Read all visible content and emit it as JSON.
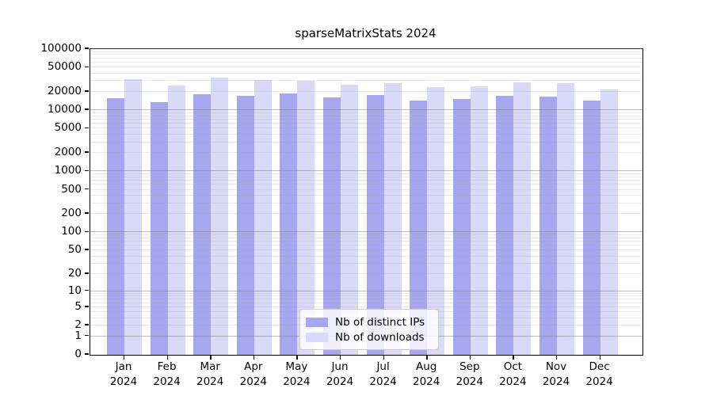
{
  "chart_data": {
    "type": "bar",
    "title": "sparseMatrixStats 2024",
    "year": "2024",
    "categories": [
      "Jan",
      "Feb",
      "Mar",
      "Apr",
      "May",
      "Jun",
      "Jul",
      "Aug",
      "Sep",
      "Oct",
      "Nov",
      "Dec"
    ],
    "series": [
      {
        "name": "Nb of distinct IPs",
        "color": "#a7a7f0",
        "values": [
          15800,
          13600,
          18300,
          17400,
          18700,
          16100,
          17800,
          14600,
          15400,
          17400,
          16900,
          14300
        ]
      },
      {
        "name": "Nb of downloads",
        "color": "#d9d9f8",
        "values": [
          32200,
          25100,
          33700,
          31500,
          30600,
          25900,
          27800,
          23900,
          24700,
          28600,
          28000,
          21700
        ]
      }
    ],
    "yscale": "log(v+1)",
    "ylim": [
      0,
      100000
    ],
    "yticks": [
      0,
      1,
      2,
      5,
      10,
      20,
      50,
      100,
      200,
      500,
      1000,
      2000,
      5000,
      10000,
      20000,
      50000,
      100000
    ],
    "xlabel": "",
    "ylabel": "",
    "grid": "horizontal log major+minor",
    "legend_position": "inside bottom-center"
  }
}
